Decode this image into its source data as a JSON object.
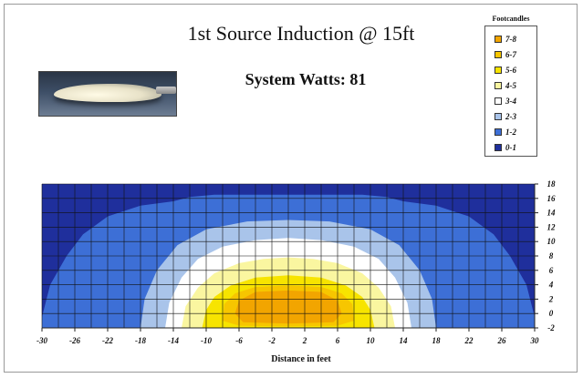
{
  "chart_data": {
    "type": "heatmap",
    "title": "1st Source Induction @ 15ft",
    "subtitle": "System Watts:  81",
    "xlabel": "Distance in feet",
    "ylabel": "",
    "xlim": [
      -30,
      30
    ],
    "ylim": [
      -2,
      18
    ],
    "x_ticks": [
      "-30",
      "-26",
      "-22",
      "-18",
      "-14",
      "-10",
      "-6",
      "-2",
      "2",
      "6",
      "10",
      "14",
      "18",
      "22",
      "26",
      "30"
    ],
    "y_ticks": [
      "18",
      "16",
      "14",
      "12",
      "10",
      "8",
      "6",
      "4",
      "2",
      "0",
      "-2"
    ],
    "grid": true,
    "legend_title": "Footcandles",
    "legend_position": "top-right",
    "levels": [
      {
        "label": "7-8",
        "color": "#f2a500"
      },
      {
        "label": "6-7",
        "color": "#f7c600"
      },
      {
        "label": "5-6",
        "color": "#f7e400"
      },
      {
        "label": "4-5",
        "color": "#faf6a0"
      },
      {
        "label": "3-4",
        "color": "#ffffff"
      },
      {
        "label": "2-3",
        "color": "#a9c4ea"
      },
      {
        "label": "1-2",
        "color": "#3d6fd6"
      },
      {
        "label": "0-1",
        "color": "#1f2f9c"
      }
    ],
    "contours": [
      {
        "level": "1-2",
        "points": [
          [
            -30,
            -2
          ],
          [
            -30,
            -0.5
          ],
          [
            -29,
            4
          ],
          [
            -27,
            8
          ],
          [
            -25,
            11
          ],
          [
            -22,
            13.5
          ],
          [
            -18,
            15
          ],
          [
            -14,
            15.6
          ],
          [
            -12,
            16.2
          ],
          [
            -9,
            16.5
          ],
          [
            9,
            16.5
          ],
          [
            12,
            16.2
          ],
          [
            14,
            15.6
          ],
          [
            18,
            15
          ],
          [
            22,
            13.5
          ],
          [
            25,
            11
          ],
          [
            27,
            8
          ],
          [
            29,
            4
          ],
          [
            30,
            -0.5
          ],
          [
            30,
            -2
          ]
        ]
      },
      {
        "level": "2-3",
        "points": [
          [
            -18,
            -2
          ],
          [
            -17.5,
            2
          ],
          [
            -16,
            6
          ],
          [
            -13.5,
            9.5
          ],
          [
            -10,
            11.7
          ],
          [
            -5,
            12.8
          ],
          [
            0,
            13
          ],
          [
            5,
            12.8
          ],
          [
            10,
            11.7
          ],
          [
            13.5,
            9.5
          ],
          [
            16,
            6
          ],
          [
            17.5,
            2
          ],
          [
            18,
            -2
          ]
        ]
      },
      {
        "level": "3-4",
        "points": [
          [
            -15,
            -2
          ],
          [
            -14.5,
            1.5
          ],
          [
            -13,
            5
          ],
          [
            -11,
            7.6
          ],
          [
            -8,
            9.3
          ],
          [
            -4,
            10.2
          ],
          [
            0,
            10.5
          ],
          [
            4,
            10.2
          ],
          [
            8,
            9.3
          ],
          [
            11,
            7.6
          ],
          [
            13,
            5
          ],
          [
            14.5,
            1.5
          ],
          [
            15,
            -2
          ]
        ]
      },
      {
        "level": "4-5",
        "points": [
          [
            -13,
            -2
          ],
          [
            -12.5,
            1
          ],
          [
            -11,
            3.6
          ],
          [
            -9,
            5.6
          ],
          [
            -6,
            7
          ],
          [
            -3,
            7.6
          ],
          [
            0,
            7.8
          ],
          [
            3,
            7.6
          ],
          [
            6,
            7
          ],
          [
            9,
            5.6
          ],
          [
            11,
            3.6
          ],
          [
            12.5,
            1
          ],
          [
            13,
            -2
          ]
        ]
      },
      {
        "level": "5-6",
        "points": [
          [
            -10.5,
            -2
          ],
          [
            -10,
            0.5
          ],
          [
            -9,
            2.3
          ],
          [
            -7,
            3.9
          ],
          [
            -4,
            5
          ],
          [
            0,
            5.3
          ],
          [
            4,
            5
          ],
          [
            7,
            3.9
          ],
          [
            9,
            2.3
          ],
          [
            10,
            0.5
          ],
          [
            10.5,
            -2
          ]
        ]
      },
      {
        "level": "6-7",
        "points": [
          [
            -8,
            -1
          ],
          [
            -7.8,
            1.3
          ],
          [
            -6.5,
            2.8
          ],
          [
            -4,
            3.7
          ],
          [
            0,
            3.9
          ],
          [
            4,
            3.7
          ],
          [
            6.5,
            2.8
          ],
          [
            7.8,
            1.3
          ],
          [
            8,
            -1
          ],
          [
            6,
            -1.7
          ],
          [
            0,
            -1.8
          ],
          [
            -6,
            -1.7
          ]
        ]
      },
      {
        "level": "7-8",
        "points": [
          [
            -6.5,
            0
          ],
          [
            -6,
            1.8
          ],
          [
            -4,
            3
          ],
          [
            0,
            3.2
          ],
          [
            4,
            3
          ],
          [
            6,
            1.8
          ],
          [
            6.5,
            0
          ],
          [
            5.5,
            -1.2
          ],
          [
            0,
            -1.4
          ],
          [
            -5.5,
            -1.2
          ]
        ]
      }
    ]
  }
}
